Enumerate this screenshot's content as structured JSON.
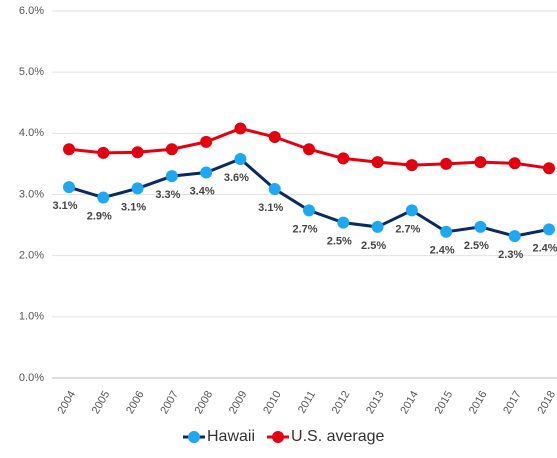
{
  "chart_data": {
    "type": "line",
    "categories": [
      "2004",
      "2005",
      "2006",
      "2007",
      "2008",
      "2009",
      "2010",
      "2011",
      "2012",
      "2013",
      "2014",
      "2015",
      "2016",
      "2017",
      "2018"
    ],
    "series": [
      {
        "name": "Hawaii",
        "color": "#0b2a5e",
        "marker_color": "#1ea7f2",
        "values": [
          3.12,
          2.95,
          3.1,
          3.3,
          3.36,
          3.58,
          3.09,
          2.74,
          2.54,
          2.47,
          2.74,
          2.39,
          2.47,
          2.32,
          2.43
        ],
        "value_labels": [
          "3.1%",
          "2.9%",
          "3.1%",
          "3.3%",
          "3.4%",
          "3.6%",
          "3.1%",
          "2.7%",
          "2.5%",
          "2.5%",
          "2.7%",
          "2.4%",
          "2.5%",
          "2.3%",
          "2.4%"
        ]
      },
      {
        "name": "U.S. average",
        "color": "#e3000f",
        "marker_color": "#e3000f",
        "values": [
          3.74,
          3.68,
          3.69,
          3.74,
          3.86,
          4.08,
          3.94,
          3.74,
          3.59,
          3.53,
          3.48,
          3.5,
          3.53,
          3.51,
          3.43
        ]
      }
    ],
    "ylim": [
      0,
      6
    ],
    "yticks": [
      {
        "value": 0,
        "label": "0.0%"
      },
      {
        "value": 1,
        "label": "1.0%"
      },
      {
        "value": 2,
        "label": "2.0%"
      },
      {
        "value": 3,
        "label": "3.0%"
      },
      {
        "value": 4,
        "label": "4.0%"
      },
      {
        "value": 5,
        "label": "5.0%"
      },
      {
        "value": 6,
        "label": "6.0%"
      }
    ],
    "grid": true,
    "legend": "bottom"
  }
}
